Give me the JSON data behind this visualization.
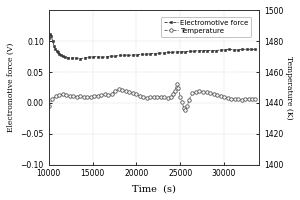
{
  "title": "",
  "xlabel": "Time  (s)",
  "ylabel_left": "Electromotive force (V)",
  "ylabel_right": "Temperature (K)",
  "xlim": [
    10000,
    34000
  ],
  "ylim_left": [
    -0.1,
    0.15
  ],
  "ylim_right": [
    1400,
    1500
  ],
  "yticks_left": [
    -0.1,
    -0.05,
    0.0,
    0.05,
    0.1
  ],
  "yticks_right": [
    1400,
    1420,
    1440,
    1460,
    1480,
    1500
  ],
  "xticks": [
    10000,
    15000,
    20000,
    25000,
    30000
  ],
  "legend_labels": [
    "Electromotive force",
    "Temperature"
  ],
  "emf_color": "#333333",
  "temp_color": "#555555",
  "background_color": "#ffffff",
  "line_color": "#333333",
  "emf_x": [
    10000,
    10150,
    10300,
    10450,
    10600,
    10750,
    10900,
    11050,
    11200,
    11400,
    11600,
    11900,
    12200,
    12600,
    13100,
    13600,
    14100,
    14600,
    15100,
    15600,
    16100,
    16600,
    17100,
    17600,
    18100,
    18600,
    19100,
    19600,
    20100,
    20600,
    21100,
    21600,
    22100,
    22600,
    23100,
    23600,
    24100,
    24600,
    25100,
    25600,
    26100,
    26600,
    27100,
    27600,
    28100,
    28600,
    29100,
    29600,
    30100,
    30600,
    31100,
    31600,
    32100,
    32600,
    33100,
    33500
  ],
  "emf_y": [
    0.105,
    0.112,
    0.108,
    0.1,
    0.093,
    0.088,
    0.085,
    0.083,
    0.08,
    0.078,
    0.076,
    0.074,
    0.073,
    0.073,
    0.073,
    0.072,
    0.073,
    0.074,
    0.075,
    0.075,
    0.074,
    0.075,
    0.076,
    0.076,
    0.077,
    0.078,
    0.077,
    0.078,
    0.078,
    0.079,
    0.079,
    0.08,
    0.08,
    0.081,
    0.081,
    0.082,
    0.082,
    0.083,
    0.083,
    0.083,
    0.084,
    0.084,
    0.085,
    0.085,
    0.085,
    0.085,
    0.085,
    0.086,
    0.086,
    0.087,
    0.086,
    0.086,
    0.087,
    0.087,
    0.087,
    0.087
  ],
  "temp_x": [
    10000,
    10400,
    10800,
    11200,
    11600,
    12000,
    12400,
    12800,
    13200,
    13600,
    14000,
    14400,
    14800,
    15200,
    15600,
    16000,
    16400,
    16800,
    17200,
    17600,
    18000,
    18400,
    18800,
    19200,
    19600,
    20000,
    20400,
    20800,
    21200,
    21600,
    22000,
    22400,
    22800,
    23200,
    23600,
    24000,
    24200,
    24400,
    24600,
    24800,
    25000,
    25200,
    25400,
    25600,
    25800,
    26000,
    26400,
    26800,
    27200,
    27600,
    28000,
    28400,
    28800,
    29200,
    29600,
    30000,
    30400,
    30800,
    31200,
    31600,
    32000,
    32400,
    32800,
    33200,
    33500
  ],
  "temp_y": [
    -0.005,
    0.006,
    0.011,
    0.013,
    0.014,
    0.013,
    0.012,
    0.011,
    0.01,
    0.011,
    0.009,
    0.009,
    0.01,
    0.011,
    0.012,
    0.013,
    0.014,
    0.013,
    0.014,
    0.02,
    0.022,
    0.021,
    0.02,
    0.018,
    0.016,
    0.014,
    0.012,
    0.01,
    0.008,
    0.009,
    0.009,
    0.01,
    0.01,
    0.009,
    0.008,
    0.01,
    0.015,
    0.02,
    0.03,
    0.025,
    0.01,
    0.002,
    -0.008,
    -0.012,
    -0.005,
    0.005,
    0.016,
    0.018,
    0.019,
    0.018,
    0.017,
    0.016,
    0.015,
    0.013,
    0.012,
    0.01,
    0.008,
    0.007,
    0.006,
    0.006,
    0.005,
    0.006,
    0.007,
    0.006,
    0.006
  ]
}
